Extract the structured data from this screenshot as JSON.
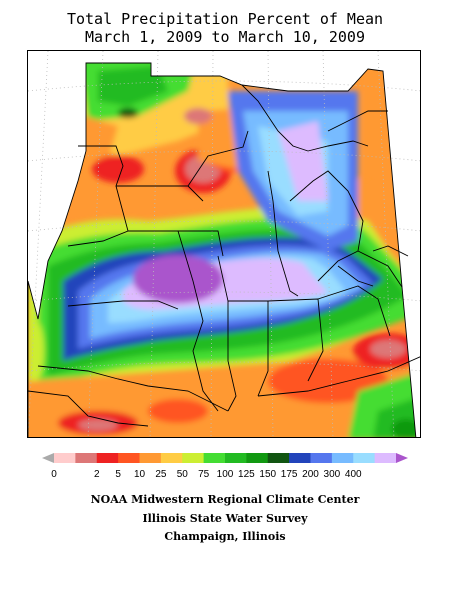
{
  "title": {
    "line1": "Total Precipitation Percent of Mean",
    "line2": "March 1, 2009 to March 10, 2009"
  },
  "legend": {
    "colors": [
      "#aaaaaa",
      "#ffcccc",
      "#dd7777",
      "#ee2222",
      "#ff5522",
      "#ff9933",
      "#ffcc44",
      "#ccee33",
      "#44dd33",
      "#22bb22",
      "#119911",
      "#115511",
      "#2244bb",
      "#5577ee",
      "#77bbff",
      "#99ddff",
      "#ddbbff",
      "#aa55cc"
    ],
    "labels": [
      "0",
      "2",
      "5",
      "10",
      "25",
      "50",
      "75",
      "100",
      "125",
      "150",
      "175",
      "200",
      "300",
      "400"
    ]
  },
  "credits": {
    "line1": "NOAA Midwestern Regional Climate Center",
    "line2": "Illinois State Water Survey",
    "line3": "Champaign, Illinois"
  }
}
